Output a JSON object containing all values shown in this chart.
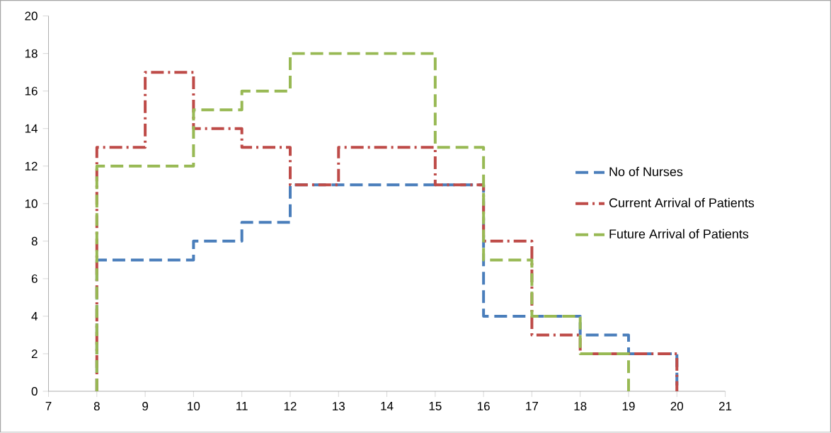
{
  "chart_data": {
    "type": "step",
    "xlim": [
      7,
      21
    ],
    "xticks": [
      7,
      8,
      9,
      10,
      11,
      12,
      13,
      14,
      15,
      16,
      17,
      18,
      19,
      20,
      21
    ],
    "ylim": [
      0,
      20
    ],
    "yticks": [
      0,
      2,
      4,
      6,
      8,
      10,
      12,
      14,
      16,
      18,
      20
    ],
    "grid": false,
    "legend": "right",
    "series": [
      {
        "name": "No of Nurses",
        "color": "#4a7ebb",
        "line_style": "dashed",
        "x": [
          8,
          8,
          10,
          11,
          12,
          16,
          18,
          19,
          20
        ],
        "values": [
          0,
          7,
          8,
          9,
          11,
          4,
          3,
          2,
          0
        ]
      },
      {
        "name": "Current Arrival of Patients",
        "color": "#be4b48",
        "line_style": "dashdot",
        "x": [
          8,
          8,
          9,
          10,
          11,
          12,
          13,
          15,
          16,
          17,
          18,
          20
        ],
        "values": [
          0,
          13,
          17,
          14,
          13,
          11,
          13,
          11,
          8,
          3,
          2,
          0
        ]
      },
      {
        "name": "Future Arrival of Patients",
        "color": "#98b954",
        "line_style": "dashed",
        "x": [
          8,
          8,
          10,
          11,
          12,
          15,
          16,
          17,
          18,
          19
        ],
        "values": [
          0,
          12,
          15,
          16,
          18,
          13,
          7,
          4,
          2,
          0
        ]
      }
    ]
  }
}
